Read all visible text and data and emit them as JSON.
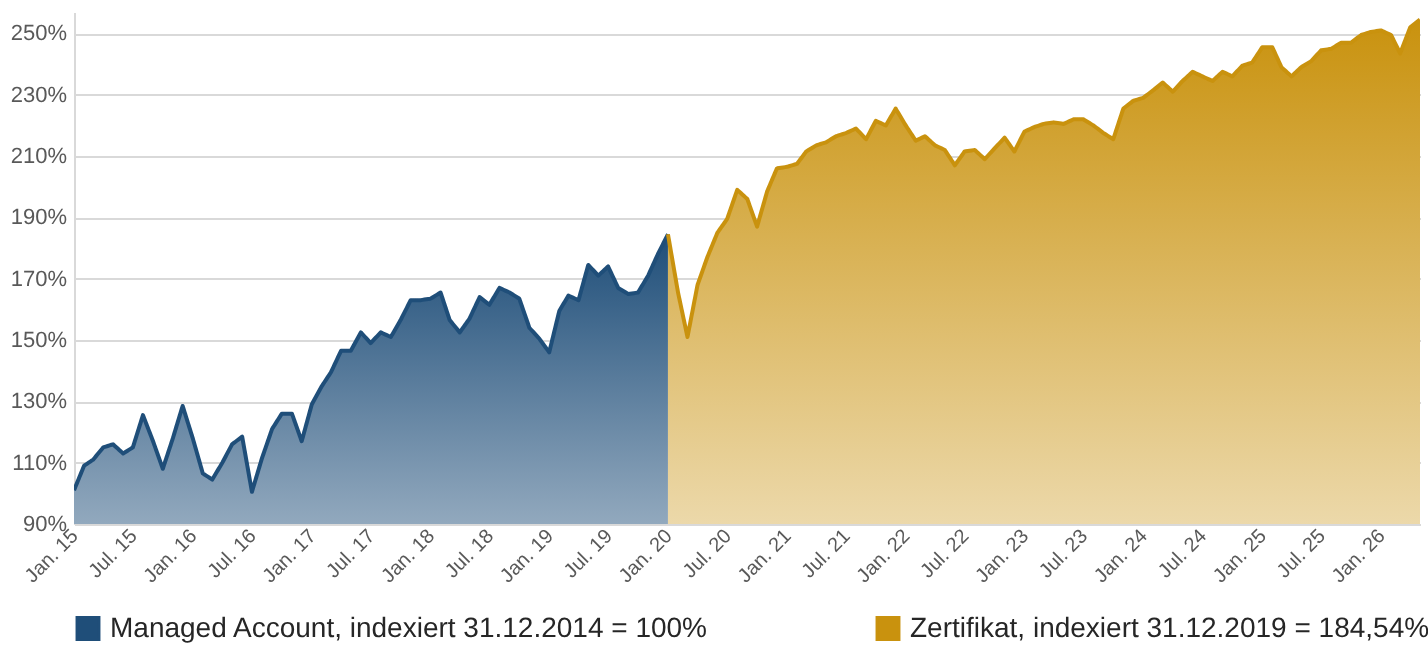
{
  "chart_data": {
    "type": "area",
    "xlim": [
      "2015-01",
      "2026-05"
    ],
    "ylim": [
      90,
      257
    ],
    "xticks": [
      {
        "value": "2015-01",
        "label": "Jan. 15"
      },
      {
        "value": "2015-07",
        "label": "Jul. 15"
      },
      {
        "value": "2016-01",
        "label": "Jan. 16"
      },
      {
        "value": "2016-07",
        "label": "Jul. 16"
      },
      {
        "value": "2017-01",
        "label": "Jan. 17"
      },
      {
        "value": "2017-07",
        "label": "Jul. 17"
      },
      {
        "value": "2018-01",
        "label": "Jan. 18"
      },
      {
        "value": "2018-07",
        "label": "Jul. 18"
      },
      {
        "value": "2019-01",
        "label": "Jan. 19"
      },
      {
        "value": "2019-07",
        "label": "Jul. 19"
      },
      {
        "value": "2020-01",
        "label": "Jan. 20"
      },
      {
        "value": "2020-07",
        "label": "Jul. 20"
      },
      {
        "value": "2021-01",
        "label": "Jan. 21"
      },
      {
        "value": "2021-07",
        "label": "Jul. 21"
      },
      {
        "value": "2022-01",
        "label": "Jan. 22"
      },
      {
        "value": "2022-07",
        "label": "Jul. 22"
      },
      {
        "value": "2023-01",
        "label": "Jan. 23"
      },
      {
        "value": "2023-07",
        "label": "Jul. 23"
      },
      {
        "value": "2024-01",
        "label": "Jan. 24"
      },
      {
        "value": "2024-07",
        "label": "Jul. 24"
      },
      {
        "value": "2025-01",
        "label": "Jan. 25"
      },
      {
        "value": "2025-07",
        "label": "Jul. 25"
      },
      {
        "value": "2026-01",
        "label": "Jan. 26"
      }
    ],
    "yticks": [
      {
        "value": 90,
        "label": "90%"
      },
      {
        "value": 110,
        "label": "110%"
      },
      {
        "value": 130,
        "label": "130%"
      },
      {
        "value": 150,
        "label": "150%"
      },
      {
        "value": 170,
        "label": "170%"
      },
      {
        "value": 190,
        "label": "190%"
      },
      {
        "value": 210,
        "label": "210%"
      },
      {
        "value": 230,
        "label": "230%"
      },
      {
        "value": 250,
        "label": "250%"
      }
    ],
    "grid": "y",
    "legend": "bottom",
    "series": [
      {
        "name": "Managed Account, indexiert 31.12.2014 = 100%",
        "color": "#1f4e79",
        "x": [
          "2015-01",
          "2015-02",
          "2015-03",
          "2015-04",
          "2015-05",
          "2015-06",
          "2015-07",
          "2015-08",
          "2015-09",
          "2015-10",
          "2015-11",
          "2015-12",
          "2016-01",
          "2016-02",
          "2016-03",
          "2016-04",
          "2016-05",
          "2016-06",
          "2016-07",
          "2016-08",
          "2016-09",
          "2016-10",
          "2016-11",
          "2016-12",
          "2017-01",
          "2017-02",
          "2017-03",
          "2017-04",
          "2017-05",
          "2017-06",
          "2017-07",
          "2017-08",
          "2017-09",
          "2017-10",
          "2017-11",
          "2017-12",
          "2018-01",
          "2018-02",
          "2018-03",
          "2018-04",
          "2018-05",
          "2018-06",
          "2018-07",
          "2018-08",
          "2018-09",
          "2018-10",
          "2018-11",
          "2018-12",
          "2019-01",
          "2019-02",
          "2019-03",
          "2019-04",
          "2019-05",
          "2019-06",
          "2019-07",
          "2019-08",
          "2019-09",
          "2019-10",
          "2019-11",
          "2019-12",
          "2020-01"
        ],
        "values": [
          101,
          109,
          111,
          115,
          116,
          113,
          115,
          125.5,
          117,
          108,
          118,
          128.5,
          118,
          106.5,
          104.5,
          110,
          116,
          118.5,
          100.5,
          111.5,
          121,
          126,
          126,
          117,
          129,
          135,
          139.5,
          146.5,
          146.5,
          152.5,
          149,
          152.5,
          151,
          156.5,
          163,
          163,
          163.5,
          165.5,
          156.5,
          152.5,
          157,
          164,
          161.5,
          167,
          165.5,
          163.5,
          154,
          150.5,
          146,
          159.5,
          164.5,
          163,
          174.5,
          171,
          174,
          167,
          165,
          165.5,
          171,
          178,
          184.5
        ]
      },
      {
        "name": "Zertifikat, indexiert  31.12.2019 = 184,54%",
        "color": "#c9920e",
        "x": [
          "2020-01",
          "2020-02",
          "2020-03",
          "2020-04",
          "2020-05",
          "2020-06",
          "2020-07",
          "2020-08",
          "2020-09",
          "2020-10",
          "2020-11",
          "2020-12",
          "2021-01",
          "2021-02",
          "2021-03",
          "2021-04",
          "2021-05",
          "2021-06",
          "2021-07",
          "2021-08",
          "2021-09",
          "2021-10",
          "2021-11",
          "2021-12",
          "2022-01",
          "2022-02",
          "2022-03",
          "2022-04",
          "2022-05",
          "2022-06",
          "2022-07",
          "2022-08",
          "2022-09",
          "2022-10",
          "2022-11",
          "2022-12",
          "2023-01",
          "2023-02",
          "2023-03",
          "2023-04",
          "2023-05",
          "2023-06",
          "2023-07",
          "2023-08",
          "2023-09",
          "2023-10",
          "2023-11",
          "2023-12",
          "2024-01",
          "2024-02",
          "2024-03",
          "2024-04",
          "2024-05",
          "2024-06",
          "2024-07",
          "2024-08",
          "2024-09",
          "2024-10",
          "2024-11",
          "2024-12",
          "2025-01",
          "2025-02",
          "2025-03",
          "2025-04",
          "2025-05",
          "2025-06",
          "2025-07",
          "2025-08",
          "2025-09",
          "2025-10",
          "2025-11",
          "2025-12",
          "2026-01",
          "2026-02",
          "2026-03",
          "2026-04",
          "2026-05"
        ],
        "values": [
          184.5,
          165.5,
          151,
          168,
          177,
          185,
          189.5,
          199,
          196,
          187,
          198.5,
          206,
          206.5,
          207.5,
          211.5,
          213.5,
          214.5,
          216.5,
          217.5,
          219,
          215.5,
          221.5,
          220,
          225.5,
          220,
          215,
          216.5,
          213.5,
          212,
          207,
          211.5,
          212,
          209,
          212.5,
          216,
          211.5,
          218,
          219.5,
          220.5,
          221,
          220.5,
          222,
          222,
          220,
          217.5,
          215.5,
          225.5,
          228,
          229,
          231.5,
          234,
          231,
          234.5,
          237.5,
          236,
          234.5,
          237.5,
          236,
          239.5,
          240.5,
          245.5,
          245.5,
          239,
          236,
          239,
          241,
          244.5,
          245,
          247,
          247,
          249.5,
          250.5,
          251,
          249.5,
          243.5,
          252,
          254.5
        ]
      }
    ]
  }
}
